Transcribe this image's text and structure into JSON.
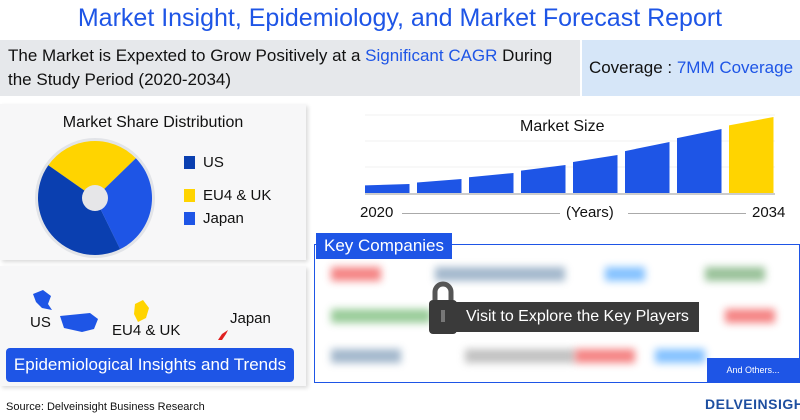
{
  "title": "Market Insight, Epidemiology, and Market Forecast Report",
  "banner": {
    "text_before": "The Market is Expexted to Grow Positively at a ",
    "highlight": "Significant CAGR",
    "text_after": " During the Study Period (2020-2034)"
  },
  "coverage": {
    "label": "Coverage : ",
    "value": "7MM Coverage"
  },
  "market_share": {
    "title": "Market Share Distribution",
    "legend": [
      {
        "label": "US",
        "color": "#0a3fb0"
      },
      {
        "label": "EU4 & UK",
        "color": "#ffd400"
      },
      {
        "label": "Japan",
        "color": "#1e55e6"
      }
    ],
    "shares": [
      42,
      28,
      30
    ]
  },
  "market_size": {
    "title": "Market Size",
    "start_label": "2020",
    "axis_label": "(Years)",
    "end_label": "2034",
    "bar_values": [
      9,
      14,
      20,
      28,
      38,
      51,
      64,
      76
    ],
    "bar_colors": [
      "#1e55e6",
      "#1e55e6",
      "#1e55e6",
      "#1e55e6",
      "#1e55e6",
      "#1e55e6",
      "#1e55e6",
      "#ffd400"
    ]
  },
  "epidemiology": {
    "regions": [
      "US",
      "EU4 & UK",
      "Japan"
    ],
    "button": "Epidemiological Insights and Trends"
  },
  "key_companies": {
    "title": "Key Companies",
    "cta": "Visit to Explore the Key Players",
    "others": "And Others..."
  },
  "source": "Source: Delveinsight Business Research",
  "logo": "DELVEINSIGHT"
}
